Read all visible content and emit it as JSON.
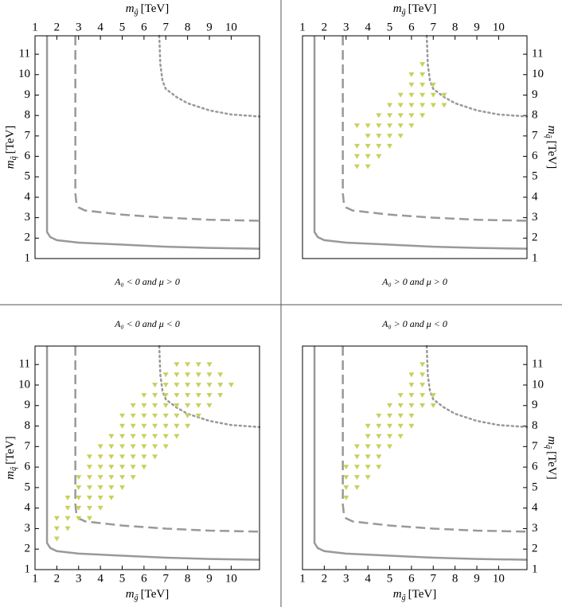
{
  "chart_data": [
    {
      "type": "scatter",
      "caption": "A₀ < 0 and μ > 0",
      "x_axis_side": "top",
      "y_axis_side": "left",
      "xlabel_sub": "g̃",
      "ylabel_sub": "q̃",
      "points": {
        "color": "#c9d05a",
        "x": [],
        "y": []
      }
    },
    {
      "type": "scatter",
      "caption": "A₀ > 0 and μ > 0",
      "x_axis_side": "top",
      "y_axis_side": "right",
      "xlabel_sub": "g̃",
      "ylabel_sub": "q̃",
      "points": {
        "color": "#c9d05a",
        "x": [
          3.5,
          4,
          3.5,
          4,
          4.5,
          3.5,
          4,
          4.5,
          5,
          4,
          4.5,
          5,
          5.5,
          3.5,
          4,
          4.5,
          5,
          5.5,
          6,
          4.5,
          5,
          5.5,
          6,
          6.5,
          5,
          5.5,
          6,
          6.5,
          7,
          7.5,
          5.5,
          6,
          6.5,
          7,
          7.5,
          6,
          6.5,
          7,
          6,
          6.5,
          6.5
        ],
        "y": [
          5.5,
          5.5,
          6,
          6,
          6,
          6.5,
          6.5,
          6.5,
          6.5,
          7,
          7,
          7,
          7,
          7.5,
          7.5,
          7.5,
          7.5,
          7.5,
          7.5,
          8,
          8,
          8,
          8,
          8,
          8.5,
          8.5,
          8.5,
          8.5,
          8.5,
          8.5,
          9,
          9,
          9,
          9,
          9,
          9.5,
          9.5,
          9.5,
          10,
          10,
          10.5
        ]
      }
    },
    {
      "type": "scatter",
      "caption": "A₀ < 0 and μ < 0",
      "x_axis_side": "bottom",
      "y_axis_side": "left",
      "xlabel_sub": "g̃",
      "ylabel_sub": "q̃",
      "points": {
        "color": "#c9d05a",
        "x": [
          2,
          2,
          2.5,
          2,
          2.5,
          3,
          3.5,
          2.5,
          3,
          3.5,
          4,
          2.5,
          3,
          3.5,
          4,
          4.5,
          3,
          3.5,
          4,
          4.5,
          5,
          3,
          3.5,
          4,
          4.5,
          5,
          5.5,
          3.5,
          4,
          4.5,
          5,
          5.5,
          6,
          3.5,
          4,
          4.5,
          5,
          5.5,
          6,
          6.5,
          4,
          4.5,
          5,
          5.5,
          6,
          6.5,
          7,
          4.5,
          5,
          5.5,
          6,
          6.5,
          7,
          7.5,
          5,
          5.5,
          6,
          6.5,
          7,
          7.5,
          8,
          5,
          5.5,
          6,
          6.5,
          7,
          7.5,
          8,
          8.5,
          5.5,
          6,
          6.5,
          7,
          7.5,
          8,
          8.5,
          9,
          6,
          6.5,
          7,
          7.5,
          8,
          8.5,
          9,
          9.5,
          6.5,
          7,
          7.5,
          8,
          8.5,
          9,
          9.5,
          10,
          7,
          7.5,
          8,
          8.5,
          9,
          9.5,
          7.5,
          8,
          8.5,
          9
        ],
        "y": [
          2.5,
          3,
          3,
          3.5,
          3.5,
          3.5,
          3.5,
          4,
          4,
          4,
          4,
          4.5,
          4.5,
          4.5,
          4.5,
          4.5,
          5,
          5,
          5,
          5,
          5,
          5.5,
          5.5,
          5.5,
          5.5,
          5.5,
          5.5,
          6,
          6,
          6,
          6,
          6,
          6,
          6.5,
          6.5,
          6.5,
          6.5,
          6.5,
          6.5,
          6.5,
          7,
          7,
          7,
          7,
          7,
          7,
          7,
          7.5,
          7.5,
          7.5,
          7.5,
          7.5,
          7.5,
          7.5,
          8,
          8,
          8,
          8,
          8,
          8,
          8,
          8.5,
          8.5,
          8.5,
          8.5,
          8.5,
          8.5,
          8.5,
          8.5,
          9,
          9,
          9,
          9,
          9,
          9,
          9,
          9,
          9.5,
          9.5,
          9.5,
          9.5,
          9.5,
          9.5,
          9.5,
          9.5,
          10,
          10,
          10,
          10,
          10,
          10,
          10,
          10,
          10.5,
          10.5,
          10.5,
          10.5,
          10.5,
          10.5,
          11,
          11,
          11,
          11
        ]
      }
    },
    {
      "type": "scatter",
      "caption": "A₀ > 0 and μ < 0",
      "x_axis_side": "bottom",
      "y_axis_side": "right",
      "xlabel_sub": "g̃",
      "ylabel_sub": "q̃",
      "points": {
        "color": "#c9d05a",
        "x": [
          3,
          3,
          3.5,
          3,
          3.5,
          4,
          3,
          3.5,
          4,
          4.5,
          3.5,
          4,
          4.5,
          3.5,
          4,
          4.5,
          5,
          4,
          4.5,
          5,
          5.5,
          4,
          4.5,
          5,
          5.5,
          6,
          4.5,
          5,
          5.5,
          6,
          5,
          5.5,
          6,
          6.5,
          7,
          5.5,
          6,
          6.5,
          7,
          6,
          6.5,
          6,
          6.5,
          6.5
        ],
        "y": [
          4.5,
          5,
          5,
          5.5,
          5.5,
          5.5,
          6,
          6,
          6,
          6,
          6.5,
          6.5,
          6.5,
          7,
          7,
          7,
          7,
          7.5,
          7.5,
          7.5,
          7.5,
          8,
          8,
          8,
          8,
          8,
          8.5,
          8.5,
          8.5,
          8.5,
          9,
          9,
          9,
          9,
          9,
          9.5,
          9.5,
          9.5,
          9.5,
          10,
          10,
          10.5,
          10.5,
          11
        ]
      }
    }
  ],
  "axis_symbol": "m",
  "axis_unit": "[TeV]",
  "xlim": [
    1,
    11.3
  ],
  "ylim": [
    1,
    11.9
  ],
  "xticks": [
    1,
    2,
    3,
    4,
    5,
    6,
    7,
    8,
    9,
    10
  ],
  "yticks": [
    1,
    2,
    3,
    4,
    5,
    6,
    7,
    8,
    9,
    10,
    11
  ],
  "contours": [
    {
      "style": "solid",
      "color": "#999999",
      "x": [
        1.55,
        1.55,
        1.7,
        2,
        3,
        5,
        7,
        9,
        11.3
      ],
      "y": [
        11.9,
        2.3,
        2.05,
        1.9,
        1.78,
        1.68,
        1.58,
        1.52,
        1.48
      ]
    },
    {
      "style": "dashed",
      "color": "#999999",
      "x": [
        2.85,
        2.85,
        2.9,
        3,
        3.3,
        5,
        7,
        9,
        11.3
      ],
      "y": [
        11.9,
        4.2,
        3.7,
        3.5,
        3.35,
        3.15,
        3,
        2.9,
        2.85
      ]
    },
    {
      "style": "dotted",
      "color": "#999999",
      "x": [
        6.7,
        6.75,
        6.85,
        7,
        7.5,
        8,
        9,
        10,
        11.3
      ],
      "y": [
        11.9,
        10.5,
        9.7,
        9.3,
        8.9,
        8.6,
        8.25,
        8.05,
        7.95
      ]
    }
  ]
}
